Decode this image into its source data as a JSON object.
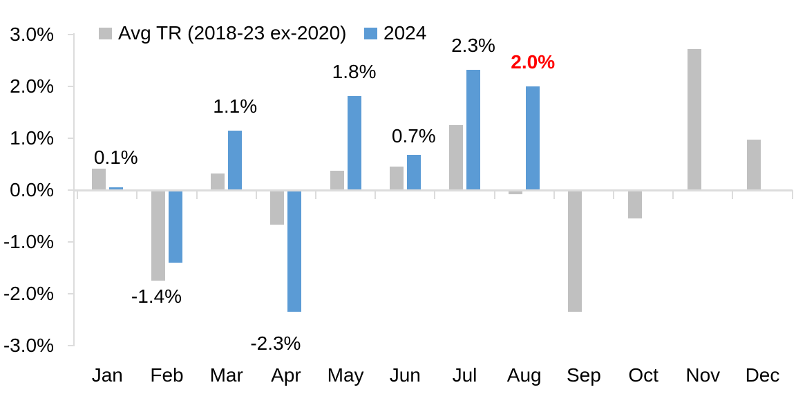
{
  "chart_data": {
    "type": "bar",
    "title": "",
    "xlabel": "",
    "ylabel": "",
    "categories": [
      "Jan",
      "Feb",
      "Mar",
      "Apr",
      "May",
      "Jun",
      "Jul",
      "Aug",
      "Sep",
      "Oct",
      "Nov",
      "Dec"
    ],
    "series": [
      {
        "name": "Avg TR (2018-23 ex-2020)",
        "color": "#c0c0c0",
        "values": [
          0.42,
          -1.75,
          0.32,
          -0.67,
          0.37,
          0.45,
          1.25,
          -0.08,
          -2.35,
          -0.55,
          2.72,
          0.97
        ]
      },
      {
        "name": "2024",
        "color": "#5b9bd5",
        "values": [
          0.05,
          -1.4,
          1.15,
          -2.35,
          1.82,
          0.68,
          2.32,
          2.0,
          null,
          null,
          null,
          null
        ]
      }
    ],
    "data_labels": [
      {
        "month": "Jan",
        "text": "0.1%",
        "color": "#000000",
        "bold": false
      },
      {
        "month": "Feb",
        "text": "-1.4%",
        "color": "#000000",
        "bold": false
      },
      {
        "month": "Mar",
        "text": "1.1%",
        "color": "#000000",
        "bold": false
      },
      {
        "month": "Apr",
        "text": "-2.3%",
        "color": "#000000",
        "bold": false
      },
      {
        "month": "May",
        "text": "1.8%",
        "color": "#000000",
        "bold": false
      },
      {
        "month": "Jun",
        "text": "0.7%",
        "color": "#000000",
        "bold": false
      },
      {
        "month": "Jul",
        "text": "2.3%",
        "color": "#000000",
        "bold": false
      },
      {
        "month": "Aug",
        "text": "2.0%",
        "color": "#ff0000",
        "bold": true
      }
    ],
    "y_axis": {
      "min": -3,
      "max": 3,
      "step": 1,
      "tick_labels": [
        "3.0%",
        "2.0%",
        "1.0%",
        "0.0%",
        "-1.0%",
        "-2.0%",
        "-3.0%"
      ],
      "axis_color": "#dcdcdc"
    },
    "legend": {
      "position": "top"
    },
    "grid": false
  }
}
